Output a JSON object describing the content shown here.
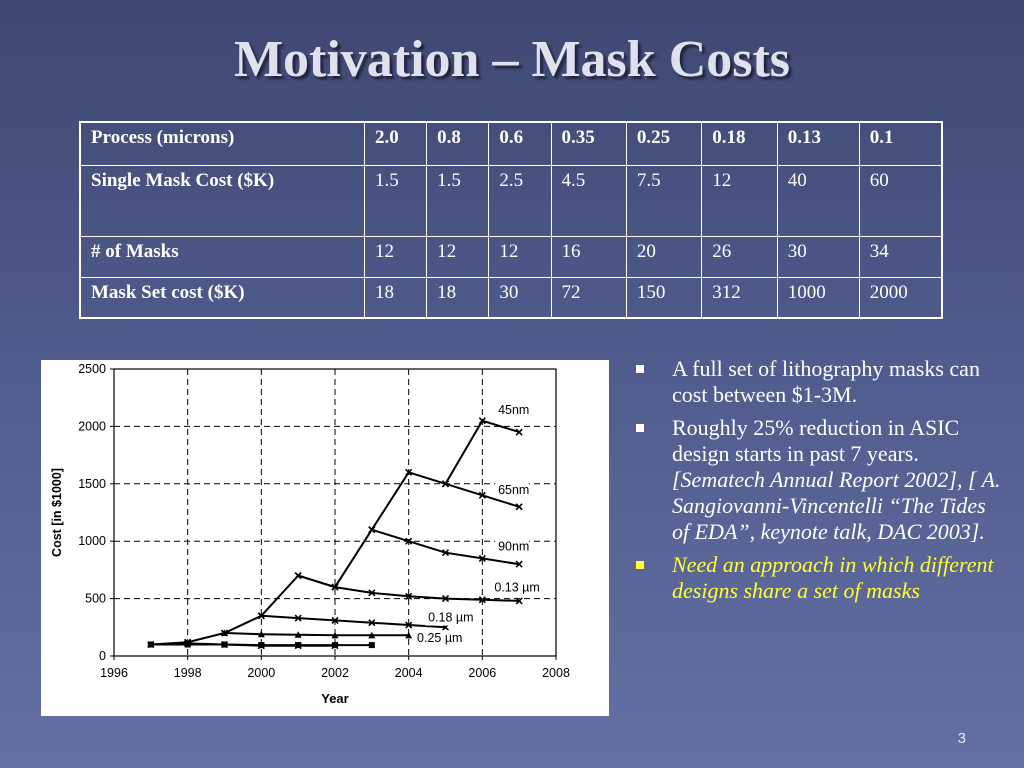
{
  "title": "Motivation – Mask Costs",
  "table": {
    "rows": [
      {
        "label": "Process (microns)",
        "cells": [
          "2.0",
          "0.8",
          "0.6",
          "0.35",
          "0.25",
          "0.18",
          "0.13",
          "0.1"
        ]
      },
      {
        "label": "Single Mask Cost ($K)",
        "cells": [
          "1.5",
          "1.5",
          "2.5",
          "4.5",
          "7.5",
          "12",
          "40",
          "60"
        ]
      },
      {
        "label": "# of Masks",
        "cells": [
          "12",
          "12",
          "12",
          "16",
          "20",
          "26",
          "30",
          "34"
        ]
      },
      {
        "label": "Mask Set cost ($K)",
        "cells": [
          "18",
          "18",
          "30",
          "72",
          "150",
          "312",
          "1000",
          "2000"
        ]
      }
    ]
  },
  "bullets": [
    {
      "text": "A full set of lithography masks can cost between $1-3M.",
      "cite": ""
    },
    {
      "text": "Roughly 25% reduction in ASIC design starts in past 7 years. ",
      "cite": "[Sematech Annual Report 2002],  [ A. Sangiovanni-Vincentelli “The Tides of EDA”, keynote talk, DAC 2003]."
    },
    {
      "text": "",
      "cite": "",
      "highlight": "Need an approach in which different designs share a set of masks"
    }
  ],
  "page_number": "3",
  "colors": {
    "highlight": "#ffff33",
    "background": "#4f5b8c"
  },
  "chart_data": {
    "type": "line",
    "xlabel": "Year",
    "ylabel": "Cost [in $1000]",
    "xlim": [
      1996,
      2008
    ],
    "ylim": [
      0,
      2500
    ],
    "x_ticks": [
      "1996",
      "1998",
      "2000",
      "2002",
      "2004",
      "2006",
      "2008"
    ],
    "y_ticks": [
      "0",
      "500",
      "1000",
      "1500",
      "2000",
      "2500"
    ],
    "grid": true,
    "series": [
      {
        "name": "45nm",
        "points": [
          [
            1997,
            100
          ],
          [
            1998,
            120
          ],
          [
            1999,
            200
          ],
          [
            2000,
            350
          ],
          [
            2001,
            700
          ],
          [
            2002,
            600
          ],
          [
            2003,
            1100
          ],
          [
            2004,
            1600
          ],
          [
            2005,
            1500
          ],
          [
            2006,
            2050
          ],
          [
            2007,
            1950
          ]
        ]
      },
      {
        "name": "65nm",
        "points": [
          [
            2005,
            1500
          ],
          [
            2006,
            1400
          ],
          [
            2007,
            1300
          ]
        ]
      },
      {
        "name": "90nm",
        "points": [
          [
            2003,
            1100
          ],
          [
            2004,
            1000
          ],
          [
            2005,
            900
          ],
          [
            2006,
            850
          ],
          [
            2007,
            800
          ]
        ]
      },
      {
        "name": "0.13 µm",
        "points": [
          [
            2001,
            700
          ],
          [
            2002,
            600
          ],
          [
            2003,
            550
          ],
          [
            2004,
            520
          ],
          [
            2005,
            500
          ],
          [
            2006,
            490
          ],
          [
            2007,
            480
          ]
        ]
      },
      {
        "name": "0.18 µm",
        "points": [
          [
            2000,
            350
          ],
          [
            2001,
            330
          ],
          [
            2002,
            310
          ],
          [
            2003,
            290
          ],
          [
            2004,
            270
          ],
          [
            2005,
            250
          ]
        ]
      },
      {
        "name": "0.25 µm",
        "points": [
          [
            1999,
            200
          ],
          [
            2000,
            190
          ],
          [
            2001,
            185
          ],
          [
            2002,
            180
          ],
          [
            2003,
            180
          ],
          [
            2004,
            180
          ]
        ]
      },
      {
        "name": "",
        "points": [
          [
            1997,
            100
          ],
          [
            1998,
            100
          ],
          [
            1999,
            100
          ],
          [
            2000,
            95
          ],
          [
            2001,
            95
          ],
          [
            2002,
            95
          ],
          [
            2003,
            95
          ]
        ]
      },
      {
        "name": "",
        "points": [
          [
            1998,
            110
          ],
          [
            1999,
            100
          ],
          [
            2000,
            90
          ],
          [
            2001,
            90
          ],
          [
            2002,
            90
          ]
        ]
      }
    ],
    "label_anchor": [
      {
        "text": "45nm",
        "x": 2006.4,
        "y": 2110
      },
      {
        "text": "65nm",
        "x": 2006.4,
        "y": 1410
      },
      {
        "text": "90nm",
        "x": 2006.4,
        "y": 920
      },
      {
        "text": "0.13 µm",
        "x": 2006.3,
        "y": 560
      },
      {
        "text": "0.18 µm",
        "x": 2004.5,
        "y": 300
      },
      {
        "text": "0.25 µm",
        "x": 2004.2,
        "y": 120
      }
    ]
  }
}
